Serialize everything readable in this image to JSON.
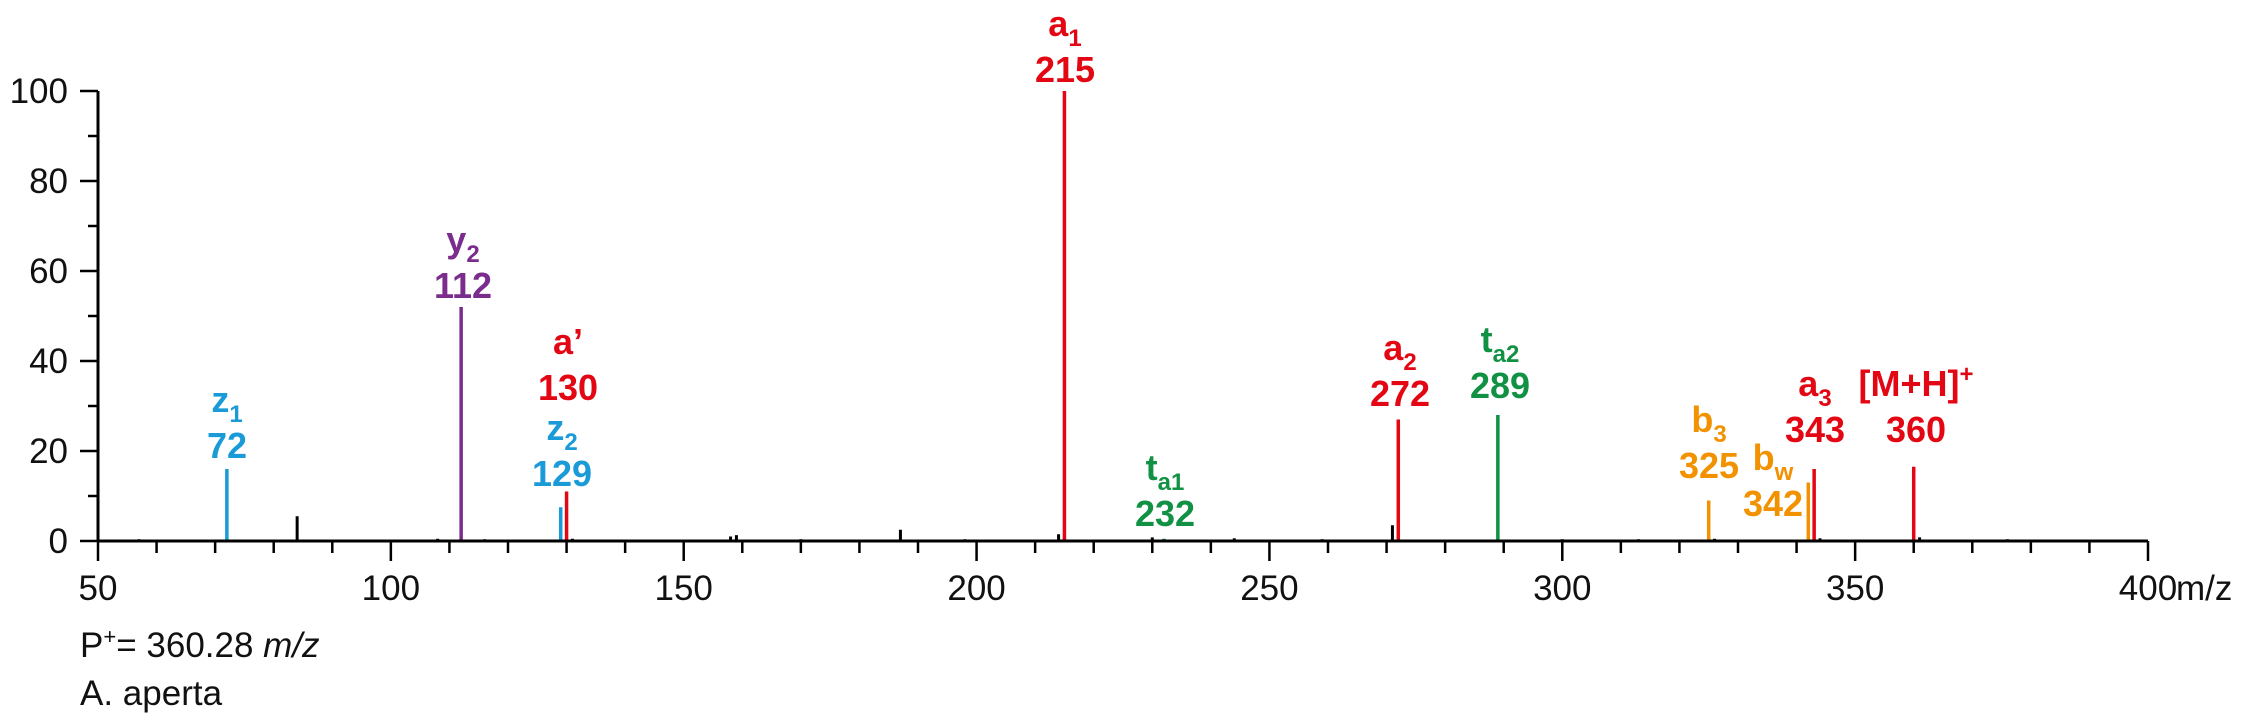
{
  "colors": {
    "a": "#e30613",
    "y": "#7b2d8e",
    "z": "#1a9bd7",
    "t": "#119143",
    "b": "#f39200",
    "other": "#000000"
  },
  "caption": {
    "line1_prefix": "P",
    "line1_sup": "+",
    "line1_mid": "= 360.28",
    "line1_unit": "m/z",
    "line2": "A. aperta"
  },
  "chart_data": {
    "type": "bar",
    "title": "",
    "xlabel": "m/z",
    "ylabel": "",
    "xlim": [
      50,
      400
    ],
    "ylim": [
      0,
      100
    ],
    "x_ticks": [
      "50",
      "100",
      "150",
      "200",
      "250",
      "300",
      "350",
      "400"
    ],
    "y_ticks": [
      "0",
      "20",
      "40",
      "60",
      "80",
      "100"
    ],
    "grid": false,
    "series": [
      {
        "peaks": [
          {
            "mz": 72,
            "intensity": 16,
            "ion": "z",
            "label": "z",
            "sub": "1",
            "sup": "",
            "value": "72"
          },
          {
            "mz": 112,
            "intensity": 52,
            "ion": "y",
            "label": "y",
            "sub": "2",
            "sup": "",
            "value": "112"
          },
          {
            "mz": 129,
            "intensity": 7.5,
            "ion": "z",
            "label": "z",
            "sub": "2",
            "sup": "",
            "value": "129"
          },
          {
            "mz": 130,
            "intensity": 11,
            "ion": "a",
            "label": "a’",
            "sub": "",
            "sup": "",
            "value": "130"
          },
          {
            "mz": 215,
            "intensity": 100,
            "ion": "a",
            "label": "a",
            "sub": "1",
            "sup": "",
            "value": "215"
          },
          {
            "mz": 232,
            "intensity": 0.5,
            "ion": "t",
            "label": "t",
            "sub": "a1",
            "sup": "",
            "value": "232"
          },
          {
            "mz": 272,
            "intensity": 27,
            "ion": "a",
            "label": "a",
            "sub": "2",
            "sup": "",
            "value": "272"
          },
          {
            "mz": 289,
            "intensity": 28,
            "ion": "t",
            "label": "t",
            "sub": "a2",
            "sup": "",
            "value": "289"
          },
          {
            "mz": 325,
            "intensity": 9,
            "ion": "b",
            "label": "b",
            "sub": "3",
            "sup": "",
            "value": "325"
          },
          {
            "mz": 342,
            "intensity": 13,
            "ion": "b",
            "label": "b",
            "sub": "w",
            "sup": "",
            "value": "342"
          },
          {
            "mz": 343,
            "intensity": 16,
            "ion": "a",
            "label": "a",
            "sub": "3",
            "sup": "",
            "value": "343"
          },
          {
            "mz": 360,
            "intensity": 16.5,
            "ion": "a",
            "label": "[M+H]",
            "sub": "",
            "sup": "+",
            "value": "360"
          }
        ]
      },
      {
        "peaks": [
          {
            "mz": 57,
            "intensity": 0.4
          },
          {
            "mz": 84,
            "intensity": 5.5
          },
          {
            "mz": 108,
            "intensity": 0.5
          },
          {
            "mz": 116,
            "intensity": 0.4
          },
          {
            "mz": 131,
            "intensity": 0.5
          },
          {
            "mz": 158,
            "intensity": 1
          },
          {
            "mz": 159,
            "intensity": 1.3
          },
          {
            "mz": 170,
            "intensity": 0.4
          },
          {
            "mz": 187,
            "intensity": 2.5
          },
          {
            "mz": 198,
            "intensity": 0.4
          },
          {
            "mz": 214,
            "intensity": 1.5
          },
          {
            "mz": 230,
            "intensity": 0.8
          },
          {
            "mz": 244,
            "intensity": 0.6
          },
          {
            "mz": 259,
            "intensity": 0.4
          },
          {
            "mz": 271,
            "intensity": 3.5
          },
          {
            "mz": 300,
            "intensity": 0.4
          },
          {
            "mz": 313,
            "intensity": 0.4
          },
          {
            "mz": 326,
            "intensity": 0.5
          },
          {
            "mz": 344,
            "intensity": 0.6
          },
          {
            "mz": 361,
            "intensity": 0.8
          },
          {
            "mz": 376,
            "intensity": 0.4
          }
        ]
      }
    ]
  }
}
